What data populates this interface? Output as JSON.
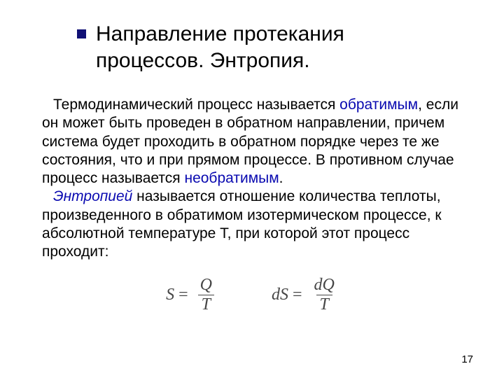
{
  "slide": {
    "title_line1": "Направление протекания",
    "title_line2": "процессов. Энтропия.",
    "bullet_color": "#101075",
    "title_color": "#000000",
    "body_color": "#000000",
    "highlight_color": "#0909b0",
    "para1": {
      "t1": "Термодинамический процесс называется ",
      "reversible": "обратимым",
      "t2": ", если он может быть проведен в обратном направлении, причем система будет проходить в обратном порядке через те же состояния, что и при прямом процессе. В противном случае процесс называется ",
      "irreversible": "необратимым",
      "t3": "."
    },
    "para2": {
      "entropy": "Энтропией",
      "t1": " называется отношение количества теплоты, произведенного в обратимом изотермическом процессе, к абсолютной температуре Т, при которой этот процесс проходит:"
    },
    "formula1": {
      "lhs": "S",
      "eq": "=",
      "num": "Q",
      "den": "T"
    },
    "formula2": {
      "lhs": "dS",
      "eq": "=",
      "num": "dQ",
      "den": "T"
    },
    "formula_color": "#464646",
    "page_number": "17",
    "background_color": "#ffffff"
  }
}
